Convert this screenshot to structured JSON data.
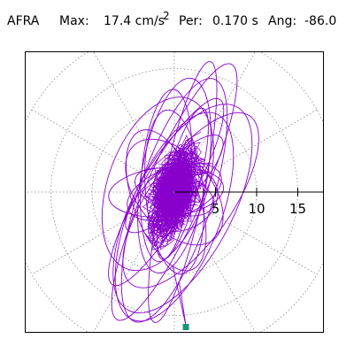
{
  "header": {
    "station": "AFRA",
    "max_label": "Max:",
    "max_value": "17.4 cm/s",
    "max_sup": "2",
    "per_label": "Per:",
    "per_value": "0.170 s",
    "ang_label": "Ang:",
    "ang_value": "-86.0"
  },
  "chart_data": {
    "type": "polar-orbit",
    "title": "AFRA Max: 17.4 cm/s 2 Per: 0.170 s Ang: -86.0",
    "units": "cm/s2",
    "max_amplitude": 17.4,
    "period_s": 0.17,
    "angle_deg": -86.0,
    "radial_ticks": [
      5,
      10,
      15
    ],
    "rings": [
      5,
      10,
      15,
      20
    ],
    "radial_range": [
      0,
      20
    ],
    "grid": "dotted",
    "trace_color": "#8800cc",
    "marker_color": "#119977",
    "peak_point": {
      "x": 1.4,
      "y": -16.6
    },
    "orbit_ellipses": [
      {
        "cx": 0,
        "cy": 0,
        "a": 17.0,
        "b": 3.5,
        "angle": 66
      },
      {
        "cx": 0,
        "cy": -1,
        "a": 15.5,
        "b": 4.5,
        "angle": 72
      },
      {
        "cx": -1,
        "cy": 0,
        "a": 13.0,
        "b": 3.0,
        "angle": 60
      },
      {
        "cx": 1,
        "cy": -2,
        "a": 14.0,
        "b": 6.0,
        "angle": 62
      },
      {
        "cx": 0,
        "cy": 2,
        "a": 12.0,
        "b": 4.0,
        "angle": 80
      },
      {
        "cx": -2,
        "cy": 1,
        "a": 11.0,
        "b": 6.0,
        "angle": 70
      },
      {
        "cx": 0,
        "cy": 0,
        "a": 10.0,
        "b": 3.5,
        "angle": 95
      },
      {
        "cx": 2,
        "cy": -1,
        "a": 12.5,
        "b": 5.0,
        "angle": 55
      },
      {
        "cx": -1,
        "cy": -1,
        "a": 9.0,
        "b": 4.0,
        "angle": 110
      },
      {
        "cx": 0,
        "cy": 1,
        "a": 8.0,
        "b": 2.5,
        "angle": 45
      },
      {
        "cx": 0,
        "cy": 0,
        "a": 7.5,
        "b": 4.5,
        "angle": 130
      },
      {
        "cx": 0,
        "cy": 0,
        "a": 6.0,
        "b": 3.0,
        "angle": 20
      },
      {
        "cx": 1,
        "cy": 1,
        "a": 9.5,
        "b": 2.0,
        "angle": 75
      },
      {
        "cx": -1,
        "cy": 2,
        "a": 10.5,
        "b": 3.0,
        "angle": 85
      },
      {
        "cx": 0,
        "cy": -3,
        "a": 13.5,
        "b": 5.5,
        "angle": 68
      },
      {
        "cx": 1,
        "cy": 0,
        "a": 16.2,
        "b": 2.5,
        "angle": 78
      },
      {
        "cx": 0,
        "cy": 0,
        "a": 5.0,
        "b": 2.5,
        "angle": 160
      },
      {
        "cx": -1,
        "cy": 0,
        "a": 7.0,
        "b": 3.0,
        "angle": 5
      },
      {
        "cx": 1,
        "cy": -1,
        "a": 4.5,
        "b": 3.5,
        "angle": 30
      },
      {
        "cx": 0,
        "cy": 0,
        "a": 3.5,
        "b": 2.5,
        "angle": 100
      }
    ]
  }
}
